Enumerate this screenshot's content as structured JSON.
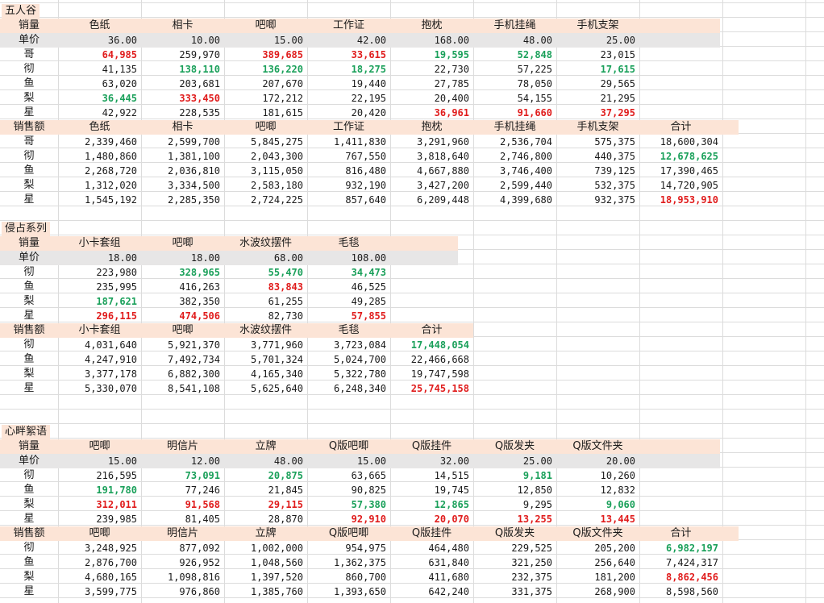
{
  "colors": {
    "header_bg": "#fce4d6",
    "price_bg": "#e7e6e6",
    "highlight_red": "#e01c1c",
    "highlight_green": "#1aa05a"
  },
  "sections": [
    {
      "title": "五人谷",
      "sales_label": "销量",
      "price_label": "单价",
      "revenue_label": "销售额",
      "total_label": "合计",
      "products": [
        "色纸",
        "相卡",
        "吧唧",
        "工作证",
        "抱枕",
        "手机挂绳",
        "手机支架"
      ],
      "prices": [
        "36.00",
        "10.00",
        "15.00",
        "42.00",
        "168.00",
        "48.00",
        "25.00"
      ],
      "qty_rows": [
        {
          "name": "哥",
          "cells": [
            {
              "v": "64,985",
              "c": "red"
            },
            {
              "v": "259,970"
            },
            {
              "v": "389,685",
              "c": "red"
            },
            {
              "v": "33,615",
              "c": "red"
            },
            {
              "v": "19,595",
              "c": "green"
            },
            {
              "v": "52,848",
              "c": "green"
            },
            {
              "v": "23,015"
            }
          ]
        },
        {
          "name": "彻",
          "cells": [
            {
              "v": "41,135"
            },
            {
              "v": "138,110",
              "c": "green"
            },
            {
              "v": "136,220",
              "c": "green"
            },
            {
              "v": "18,275",
              "c": "green"
            },
            {
              "v": "22,730"
            },
            {
              "v": "57,225"
            },
            {
              "v": "17,615",
              "c": "green"
            }
          ]
        },
        {
          "name": "鱼",
          "cells": [
            {
              "v": "63,020"
            },
            {
              "v": "203,681"
            },
            {
              "v": "207,670"
            },
            {
              "v": "19,440"
            },
            {
              "v": "27,785"
            },
            {
              "v": "78,050"
            },
            {
              "v": "29,565"
            }
          ]
        },
        {
          "name": "梨",
          "cells": [
            {
              "v": "36,445",
              "c": "green"
            },
            {
              "v": "333,450",
              "c": "red"
            },
            {
              "v": "172,212"
            },
            {
              "v": "22,195"
            },
            {
              "v": "20,400"
            },
            {
              "v": "54,155"
            },
            {
              "v": "21,295"
            }
          ]
        },
        {
          "name": "星",
          "cells": [
            {
              "v": "42,922"
            },
            {
              "v": "228,535"
            },
            {
              "v": "181,615"
            },
            {
              "v": "20,420"
            },
            {
              "v": "36,961",
              "c": "red"
            },
            {
              "v": "91,660",
              "c": "red"
            },
            {
              "v": "37,295",
              "c": "red"
            }
          ]
        }
      ],
      "rev_rows": [
        {
          "name": "哥",
          "cells": [
            {
              "v": "2,339,460"
            },
            {
              "v": "2,599,700"
            },
            {
              "v": "5,845,275"
            },
            {
              "v": "1,411,830"
            },
            {
              "v": "3,291,960"
            },
            {
              "v": "2,536,704"
            },
            {
              "v": "575,375"
            },
            {
              "v": "18,600,304"
            }
          ]
        },
        {
          "name": "彻",
          "cells": [
            {
              "v": "1,480,860"
            },
            {
              "v": "1,381,100"
            },
            {
              "v": "2,043,300"
            },
            {
              "v": "767,550"
            },
            {
              "v": "3,818,640"
            },
            {
              "v": "2,746,800"
            },
            {
              "v": "440,375"
            },
            {
              "v": "12,678,625",
              "c": "green"
            }
          ]
        },
        {
          "name": "鱼",
          "cells": [
            {
              "v": "2,268,720"
            },
            {
              "v": "2,036,810"
            },
            {
              "v": "3,115,050"
            },
            {
              "v": "816,480"
            },
            {
              "v": "4,667,880"
            },
            {
              "v": "3,746,400"
            },
            {
              "v": "739,125"
            },
            {
              "v": "17,390,465"
            }
          ]
        },
        {
          "name": "梨",
          "cells": [
            {
              "v": "1,312,020"
            },
            {
              "v": "3,334,500"
            },
            {
              "v": "2,583,180"
            },
            {
              "v": "932,190"
            },
            {
              "v": "3,427,200"
            },
            {
              "v": "2,599,440"
            },
            {
              "v": "532,375"
            },
            {
              "v": "14,720,905"
            }
          ]
        },
        {
          "name": "星",
          "cells": [
            {
              "v": "1,545,192"
            },
            {
              "v": "2,285,350"
            },
            {
              "v": "2,724,225"
            },
            {
              "v": "857,640"
            },
            {
              "v": "6,209,448"
            },
            {
              "v": "4,399,680"
            },
            {
              "v": "932,375"
            },
            {
              "v": "18,953,910",
              "c": "red"
            }
          ]
        }
      ]
    },
    {
      "title": "侵占系列",
      "sales_label": "销量",
      "price_label": "单价",
      "revenue_label": "销售额",
      "total_label": "合计",
      "products": [
        "小卡套组",
        "吧唧",
        "水波纹摆件",
        "毛毯"
      ],
      "prices": [
        "18.00",
        "18.00",
        "68.00",
        "108.00"
      ],
      "qty_rows": [
        {
          "name": "彻",
          "cells": [
            {
              "v": "223,980"
            },
            {
              "v": "328,965",
              "c": "green"
            },
            {
              "v": "55,470",
              "c": "green"
            },
            {
              "v": "34,473",
              "c": "green"
            }
          ]
        },
        {
          "name": "鱼",
          "cells": [
            {
              "v": "235,995"
            },
            {
              "v": "416,263"
            },
            {
              "v": "83,843",
              "c": "red"
            },
            {
              "v": "46,525"
            }
          ]
        },
        {
          "name": "梨",
          "cells": [
            {
              "v": "187,621",
              "c": "green"
            },
            {
              "v": "382,350"
            },
            {
              "v": "61,255"
            },
            {
              "v": "49,285"
            }
          ]
        },
        {
          "name": "星",
          "cells": [
            {
              "v": "296,115",
              "c": "red"
            },
            {
              "v": "474,506",
              "c": "red"
            },
            {
              "v": "82,730"
            },
            {
              "v": "57,855",
              "c": "red"
            }
          ]
        }
      ],
      "rev_rows": [
        {
          "name": "彻",
          "cells": [
            {
              "v": "4,031,640"
            },
            {
              "v": "5,921,370"
            },
            {
              "v": "3,771,960"
            },
            {
              "v": "3,723,084"
            },
            {
              "v": "17,448,054",
              "c": "green"
            }
          ]
        },
        {
          "name": "鱼",
          "cells": [
            {
              "v": "4,247,910"
            },
            {
              "v": "7,492,734"
            },
            {
              "v": "5,701,324"
            },
            {
              "v": "5,024,700"
            },
            {
              "v": "22,466,668"
            }
          ]
        },
        {
          "name": "梨",
          "cells": [
            {
              "v": "3,377,178"
            },
            {
              "v": "6,882,300"
            },
            {
              "v": "4,165,340"
            },
            {
              "v": "5,322,780"
            },
            {
              "v": "19,747,598"
            }
          ]
        },
        {
          "name": "星",
          "cells": [
            {
              "v": "5,330,070"
            },
            {
              "v": "8,541,108"
            },
            {
              "v": "5,625,640"
            },
            {
              "v": "6,248,340"
            },
            {
              "v": "25,745,158",
              "c": "red"
            }
          ]
        }
      ]
    },
    {
      "title": "心畔絮语",
      "sales_label": "销量",
      "price_label": "单价",
      "revenue_label": "销售额",
      "total_label": "合计",
      "products": [
        "吧唧",
        "明信片",
        "立牌",
        "Q版吧唧",
        "Q版挂件",
        "Q版发夹",
        "Q版文件夹"
      ],
      "prices": [
        "15.00",
        "12.00",
        "48.00",
        "15.00",
        "32.00",
        "25.00",
        "20.00"
      ],
      "qty_rows": [
        {
          "name": "彻",
          "cells": [
            {
              "v": "216,595"
            },
            {
              "v": "73,091",
              "c": "green"
            },
            {
              "v": "20,875",
              "c": "green"
            },
            {
              "v": "63,665"
            },
            {
              "v": "14,515"
            },
            {
              "v": "9,181",
              "c": "green"
            },
            {
              "v": "10,260"
            }
          ]
        },
        {
          "name": "鱼",
          "cells": [
            {
              "v": "191,780",
              "c": "green"
            },
            {
              "v": "77,246"
            },
            {
              "v": "21,845"
            },
            {
              "v": "90,825"
            },
            {
              "v": "19,745"
            },
            {
              "v": "12,850"
            },
            {
              "v": "12,832"
            }
          ]
        },
        {
          "name": "梨",
          "cells": [
            {
              "v": "312,011",
              "c": "red"
            },
            {
              "v": "91,568",
              "c": "red"
            },
            {
              "v": "29,115",
              "c": "red"
            },
            {
              "v": "57,380",
              "c": "green"
            },
            {
              "v": "12,865",
              "c": "green"
            },
            {
              "v": "9,295"
            },
            {
              "v": "9,060",
              "c": "green"
            }
          ]
        },
        {
          "name": "星",
          "cells": [
            {
              "v": "239,985"
            },
            {
              "v": "81,405"
            },
            {
              "v": "28,870"
            },
            {
              "v": "92,910",
              "c": "red"
            },
            {
              "v": "20,070",
              "c": "red"
            },
            {
              "v": "13,255",
              "c": "red"
            },
            {
              "v": "13,445",
              "c": "red"
            }
          ]
        }
      ],
      "rev_rows": [
        {
          "name": "彻",
          "cells": [
            {
              "v": "3,248,925"
            },
            {
              "v": "877,092"
            },
            {
              "v": "1,002,000"
            },
            {
              "v": "954,975"
            },
            {
              "v": "464,480"
            },
            {
              "v": "229,525"
            },
            {
              "v": "205,200"
            },
            {
              "v": "6,982,197",
              "c": "green"
            }
          ]
        },
        {
          "name": "鱼",
          "cells": [
            {
              "v": "2,876,700"
            },
            {
              "v": "926,952"
            },
            {
              "v": "1,048,560"
            },
            {
              "v": "1,362,375"
            },
            {
              "v": "631,840"
            },
            {
              "v": "321,250"
            },
            {
              "v": "256,640"
            },
            {
              "v": "7,424,317"
            }
          ]
        },
        {
          "name": "梨",
          "cells": [
            {
              "v": "4,680,165"
            },
            {
              "v": "1,098,816"
            },
            {
              "v": "1,397,520"
            },
            {
              "v": "860,700"
            },
            {
              "v": "411,680"
            },
            {
              "v": "232,375"
            },
            {
              "v": "181,200"
            },
            {
              "v": "8,862,456",
              "c": "red"
            }
          ]
        },
        {
          "name": "星",
          "cells": [
            {
              "v": "3,599,775"
            },
            {
              "v": "976,860"
            },
            {
              "v": "1,385,760"
            },
            {
              "v": "1,393,650"
            },
            {
              "v": "642,240"
            },
            {
              "v": "331,375"
            },
            {
              "v": "268,900"
            },
            {
              "v": "8,598,560"
            }
          ]
        }
      ]
    }
  ]
}
